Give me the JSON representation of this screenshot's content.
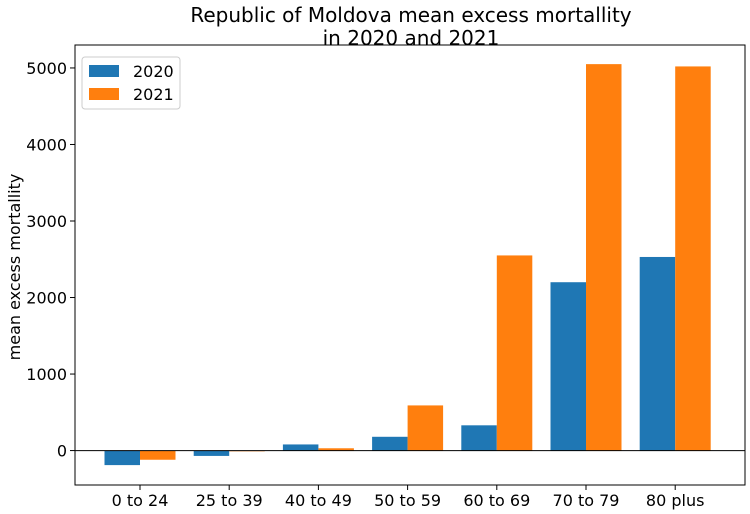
{
  "chart_data": {
    "type": "bar",
    "title": [
      "Republic of Moldova mean excess mortallity",
      "in 2020 and 2021"
    ],
    "xlabel": "",
    "ylabel": "mean excess mortallity",
    "categories": [
      "0 to 24",
      "25 to 39",
      "40 to 49",
      "50 to 59",
      "60 to 69",
      "70 to 79",
      "80 plus"
    ],
    "series": [
      {
        "name": "2020",
        "color": "#1f77b4",
        "values": [
          -190,
          -70,
          80,
          180,
          330,
          2200,
          2530
        ]
      },
      {
        "name": "2021",
        "color": "#ff7f0e",
        "values": [
          -120,
          -10,
          30,
          590,
          2550,
          5050,
          5020
        ]
      }
    ],
    "ylim": [
      -450,
      5300
    ],
    "yticks": [
      0,
      1000,
      2000,
      3000,
      4000,
      5000
    ],
    "zero_line": true,
    "legend_position": "top-left",
    "grid": false
  }
}
